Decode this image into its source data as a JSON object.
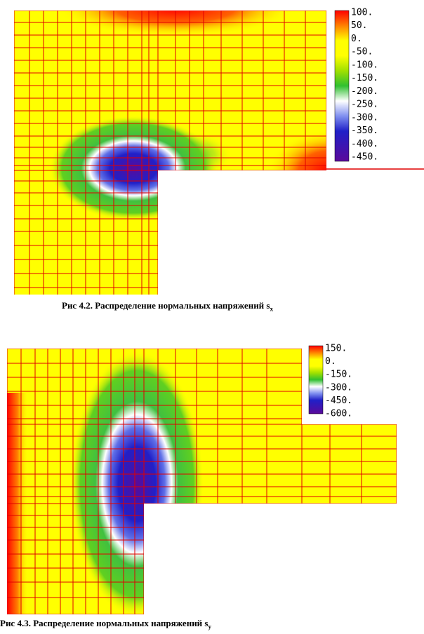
{
  "figures": [
    {
      "colorbar_labels": [
        "100.",
        "50.",
        "0.",
        "-50.",
        "-100.",
        "-150.",
        "-200.",
        "-250.",
        "-300.",
        "-350.",
        "-400.",
        "-450."
      ],
      "caption": {
        "text": "Рис 4.2. Распределение нормальных напряжений s",
        "subscript": "x"
      }
    },
    {
      "colorbar_labels": [
        "150.",
        "0.",
        "-150.",
        "-300.",
        "-450.",
        "-600."
      ],
      "caption": {
        "text": "Рис 4.3. Распределение нормальных напряжений s",
        "subscript": "y"
      }
    }
  ]
}
